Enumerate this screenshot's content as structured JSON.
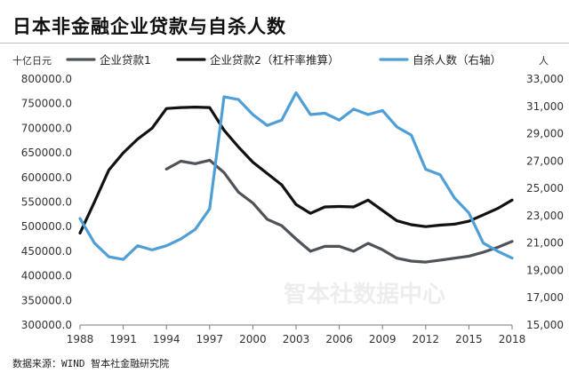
{
  "header": {
    "title": "日本非金融企业贷款与自杀人数"
  },
  "footer": {
    "source": "数据来源：WIND 智本社金融研究院"
  },
  "watermark": "智本社数据中心",
  "chart_data": {
    "type": "line",
    "title": "日本非金融企业贷款与自杀人数",
    "y_left_unit": "十亿日元",
    "y_right_unit": "人",
    "y_left_ticks": [
      "800000.0",
      "750000.0",
      "700000.0",
      "650000.0",
      "600000.0",
      "550000.0",
      "500000.0",
      "450000.0",
      "400000.0",
      "350000.0",
      "300000.0"
    ],
    "y_right_ticks": [
      "33,000",
      "31,000",
      "29,000",
      "27,000",
      "25,000",
      "23,000",
      "21,000",
      "19,000",
      "17,000",
      "15,000"
    ],
    "x_ticks": [
      "1988",
      "1991",
      "1994",
      "1997",
      "2000",
      "2003",
      "2006",
      "2009",
      "2012",
      "2015",
      "2018"
    ],
    "ylim_left": [
      300000,
      800000
    ],
    "ylim_right": [
      15000,
      33000
    ],
    "xlim": [
      1988,
      2018
    ],
    "colors": {
      "loan1": "#4d5359",
      "loan2": "#111111",
      "suicide": "#4f9fd6"
    },
    "legend": [
      {
        "key": "loan1",
        "label": "企业贷款1"
      },
      {
        "key": "loan2",
        "label": "企业贷款2（杠杆率推算）"
      },
      {
        "key": "suicide",
        "label": "自杀人数（右轴）"
      }
    ],
    "series": [
      {
        "name": "企业贷款1",
        "key": "loan1",
        "axis": "left",
        "x": [
          1994,
          1995,
          1996,
          1997,
          1998,
          1999,
          2000,
          2001,
          2002,
          2003,
          2004,
          2005,
          2006,
          2007,
          2008,
          2009,
          2010,
          2011,
          2012,
          2013,
          2014,
          2015,
          2016,
          2017,
          2018
        ],
        "values": [
          617000,
          633000,
          628000,
          635000,
          610000,
          570000,
          548000,
          515000,
          502000,
          475000,
          450000,
          460000,
          460000,
          450000,
          466000,
          453000,
          436000,
          430000,
          428000,
          432000,
          436000,
          440000,
          448000,
          458000,
          470000
        ]
      },
      {
        "name": "企业贷款2（杠杆率推算）",
        "key": "loan2",
        "axis": "left",
        "x": [
          1988,
          1989,
          1990,
          1991,
          1992,
          1993,
          1994,
          1995,
          1996,
          1997,
          1998,
          1999,
          2000,
          2001,
          2002,
          2003,
          2004,
          2005,
          2006,
          2007,
          2008,
          2009,
          2010,
          2011,
          2012,
          2013,
          2014,
          2015,
          2016,
          2017,
          2018
        ],
        "values": [
          487000,
          550000,
          615000,
          650000,
          678000,
          700000,
          740000,
          742000,
          743000,
          742000,
          696000,
          662000,
          631000,
          608000,
          585000,
          545000,
          527000,
          540000,
          541000,
          540000,
          554000,
          533000,
          512000,
          504000,
          500000,
          503000,
          505000,
          511000,
          524000,
          537000,
          554000
        ]
      },
      {
        "name": "自杀人数（右轴）",
        "key": "suicide",
        "axis": "right",
        "x": [
          1988,
          1989,
          1990,
          1991,
          1992,
          1993,
          1994,
          1995,
          1996,
          1997,
          1998,
          1999,
          2000,
          2001,
          2002,
          2003,
          2004,
          2005,
          2006,
          2007,
          2008,
          2009,
          2010,
          2011,
          2012,
          2013,
          2014,
          2015,
          2016,
          2017,
          2018
        ],
        "values": [
          22800,
          21000,
          20000,
          19800,
          20800,
          20500,
          20800,
          21300,
          22000,
          23500,
          31700,
          31500,
          30400,
          29600,
          30000,
          32000,
          30400,
          30500,
          30000,
          30800,
          30400,
          30700,
          29500,
          28900,
          26400,
          26000,
          24300,
          23200,
          21000,
          20400,
          19900
        ]
      }
    ]
  }
}
